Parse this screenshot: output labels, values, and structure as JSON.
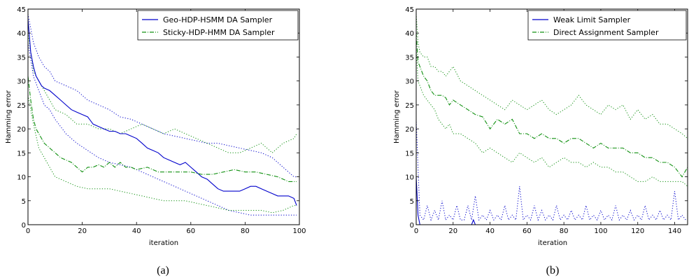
{
  "colors": {
    "blue": "#0000cc",
    "green": "#109010"
  },
  "chart_data": [
    {
      "type": "line",
      "caption": "(a)",
      "xlabel": "iteration",
      "ylabel": "Hamming error",
      "xlim": [
        0,
        100
      ],
      "ylim": [
        0,
        45
      ],
      "xticks": [
        0,
        20,
        40,
        60,
        80,
        100
      ],
      "yticks": [
        0,
        5,
        10,
        15,
        20,
        25,
        30,
        35,
        40,
        45
      ],
      "legend_position": "top-right",
      "grid": false,
      "series": [
        {
          "name": "Geo-HDP-HSMM DA Sampler",
          "color": "#0000cc",
          "style": "solid",
          "legend": true,
          "x": [
            0,
            1,
            2,
            3,
            4,
            5,
            6,
            8,
            10,
            12,
            14,
            16,
            18,
            20,
            22,
            24,
            26,
            28,
            30,
            32,
            34,
            36,
            38,
            40,
            42,
            44,
            46,
            48,
            50,
            52,
            54,
            56,
            58,
            60,
            62,
            64,
            66,
            68,
            70,
            72,
            74,
            76,
            78,
            80,
            82,
            84,
            86,
            88,
            90,
            92,
            94,
            96,
            98,
            99
          ],
          "y": [
            43,
            36,
            33,
            31,
            30,
            29,
            28.5,
            28,
            27,
            26,
            25,
            24,
            23.5,
            23,
            22.5,
            21,
            20.5,
            20,
            19.5,
            19.5,
            19,
            19,
            18.5,
            18,
            17,
            16,
            15.5,
            15,
            14,
            13.5,
            13,
            12.5,
            13,
            12,
            11,
            10,
            9.5,
            8.5,
            7.5,
            7,
            7,
            7,
            7,
            7.5,
            8,
            8,
            7.5,
            7,
            6.5,
            6,
            6,
            6,
            5.5,
            4
          ]
        },
        {
          "name": "Geo-HDP-HSMM upper",
          "color": "#0000cc",
          "style": "dotted",
          "legend": false,
          "x": [
            0,
            2,
            4,
            6,
            8,
            10,
            14,
            18,
            22,
            26,
            30,
            34,
            38,
            42,
            46,
            50,
            54,
            58,
            62,
            66,
            70,
            74,
            78,
            82,
            86,
            90,
            94,
            98,
            99
          ],
          "y": [
            44,
            38,
            35,
            33,
            32,
            30,
            29,
            28,
            26,
            25,
            24,
            22.5,
            22,
            21,
            20,
            19,
            18.5,
            18,
            17.5,
            17,
            17,
            16.5,
            16,
            15.5,
            15,
            14,
            12,
            10,
            10
          ]
        },
        {
          "name": "Geo-HDP-HSMM lower",
          "color": "#0000cc",
          "style": "dotted",
          "legend": false,
          "x": [
            0,
            2,
            4,
            6,
            8,
            10,
            14,
            18,
            22,
            26,
            30,
            34,
            38,
            42,
            46,
            50,
            54,
            58,
            62,
            66,
            70,
            74,
            78,
            82,
            86,
            90,
            94,
            98,
            99
          ],
          "y": [
            38,
            31,
            28,
            25,
            24,
            22,
            19,
            17,
            15.5,
            14,
            13,
            12.5,
            12,
            11,
            10,
            9,
            8,
            7,
            6,
            5,
            4,
            3,
            2.5,
            2,
            2,
            2,
            2,
            2,
            2
          ]
        },
        {
          "name": "Sticky-HDP-HMM DA Sampler",
          "color": "#109010",
          "style": "dashdot",
          "legend": true,
          "x": [
            0,
            1,
            2,
            3,
            4,
            6,
            8,
            10,
            12,
            14,
            16,
            18,
            20,
            22,
            24,
            26,
            28,
            30,
            32,
            34,
            36,
            38,
            40,
            44,
            48,
            52,
            56,
            60,
            64,
            68,
            72,
            76,
            80,
            84,
            88,
            92,
            96,
            99
          ],
          "y": [
            31,
            26,
            22,
            20,
            19,
            17,
            16,
            15,
            14,
            13.5,
            13,
            12,
            11,
            12,
            12,
            12.5,
            12,
            13,
            12,
            13,
            12,
            12,
            11.5,
            12,
            11,
            11,
            11,
            11,
            10.5,
            10.5,
            11,
            11.5,
            11,
            11,
            10.5,
            10,
            9,
            9
          ]
        },
        {
          "name": "Sticky-HDP-HMM upper",
          "color": "#109010",
          "style": "dotted",
          "legend": false,
          "x": [
            0,
            2,
            4,
            6,
            8,
            10,
            14,
            18,
            22,
            26,
            30,
            34,
            38,
            42,
            46,
            50,
            54,
            58,
            62,
            66,
            70,
            74,
            78,
            82,
            86,
            90,
            94,
            98,
            99
          ],
          "y": [
            40,
            32,
            30,
            28,
            26,
            24,
            23,
            21,
            21,
            20,
            20,
            19,
            20,
            21,
            20,
            19,
            20,
            19,
            18,
            17,
            16,
            15,
            15,
            16,
            17,
            15,
            17,
            18,
            19
          ]
        },
        {
          "name": "Sticky-HDP-HMM lower",
          "color": "#109010",
          "style": "dotted",
          "legend": false,
          "x": [
            0,
            2,
            4,
            6,
            8,
            10,
            14,
            18,
            22,
            26,
            30,
            34,
            38,
            42,
            46,
            50,
            54,
            58,
            62,
            66,
            70,
            74,
            78,
            82,
            86,
            90,
            94,
            98,
            99
          ],
          "y": [
            27,
            21,
            16,
            14,
            12,
            10,
            9,
            8,
            7.5,
            7.5,
            7.5,
            7,
            6.5,
            6,
            5.5,
            5,
            5,
            5,
            4.5,
            4,
            3.5,
            3,
            3,
            3,
            3,
            2.5,
            3,
            4,
            4
          ]
        }
      ]
    },
    {
      "type": "line",
      "caption": "(b)",
      "xlabel": "iteration",
      "ylabel": "Hamming error",
      "xlim": [
        0,
        147
      ],
      "ylim": [
        0,
        45
      ],
      "xticks": [
        0,
        20,
        40,
        60,
        80,
        100,
        120,
        140
      ],
      "yticks": [
        0,
        5,
        10,
        15,
        20,
        25,
        30,
        35,
        40,
        45
      ],
      "legend_position": "top-right",
      "grid": false,
      "series": [
        {
          "name": "Weak Limit Sampler",
          "color": "#0000cc",
          "style": "solid",
          "legend": true,
          "x": [
            0,
            1,
            2,
            3,
            10,
            20,
            30,
            31,
            32,
            40,
            60,
            80,
            100,
            120,
            140,
            147
          ],
          "y": [
            10,
            2,
            0,
            0,
            0,
            0,
            0,
            1,
            0,
            0,
            0,
            0,
            0,
            0,
            0,
            0
          ]
        },
        {
          "name": "Weak Limit upper",
          "color": "#0000cc",
          "style": "dotted",
          "legend": false,
          "x": [
            0,
            1,
            2,
            4,
            6,
            8,
            10,
            12,
            14,
            16,
            18,
            20,
            22,
            24,
            26,
            28,
            30,
            32,
            34,
            36,
            38,
            40,
            42,
            44,
            46,
            48,
            50,
            52,
            54,
            56,
            58,
            60,
            62,
            64,
            66,
            68,
            70,
            72,
            74,
            76,
            78,
            80,
            82,
            84,
            86,
            88,
            90,
            92,
            94,
            96,
            98,
            100,
            102,
            104,
            106,
            108,
            110,
            112,
            114,
            116,
            118,
            120,
            122,
            124,
            126,
            128,
            130,
            132,
            134,
            136,
            138,
            140,
            142,
            144,
            146,
            147
          ],
          "y": [
            22,
            12,
            2,
            1,
            4,
            1,
            3,
            1,
            5,
            1,
            2,
            1,
            4,
            1,
            1,
            4,
            1,
            6,
            1,
            2,
            1,
            3,
            1,
            2,
            1,
            4,
            1,
            2,
            1,
            8,
            1,
            2,
            1,
            4,
            1,
            3,
            1,
            2,
            1,
            4,
            1,
            2,
            1,
            3,
            1,
            2,
            1,
            4,
            1,
            2,
            1,
            3,
            1,
            2,
            1,
            4,
            1,
            2,
            1,
            3,
            1,
            2,
            1,
            4,
            1,
            2,
            1,
            3,
            1,
            2,
            1,
            7,
            1,
            2,
            1,
            1
          ]
        },
        {
          "name": "Direct Assignment Sampler",
          "color": "#109010",
          "style": "dashdot",
          "legend": true,
          "x": [
            0,
            1,
            2,
            4,
            6,
            8,
            10,
            12,
            14,
            16,
            18,
            20,
            24,
            28,
            32,
            36,
            40,
            44,
            48,
            52,
            56,
            60,
            64,
            68,
            72,
            76,
            80,
            84,
            88,
            92,
            96,
            100,
            104,
            108,
            112,
            116,
            120,
            124,
            128,
            132,
            136,
            140,
            144,
            147
          ],
          "y": [
            40,
            34,
            33,
            31,
            30,
            28,
            27,
            27,
            27,
            26.5,
            25,
            26,
            25,
            24,
            23,
            22.5,
            20,
            22,
            21,
            22,
            19,
            19,
            18,
            19,
            18,
            18,
            17,
            18,
            18,
            17,
            16,
            17,
            16,
            16,
            16,
            15,
            15,
            14,
            14,
            13,
            13,
            12,
            10,
            12
          ]
        },
        {
          "name": "Direct Assignment upper",
          "color": "#109010",
          "style": "dotted",
          "legend": false,
          "x": [
            0,
            1,
            2,
            4,
            6,
            8,
            10,
            12,
            14,
            16,
            18,
            20,
            24,
            28,
            32,
            36,
            40,
            44,
            48,
            52,
            56,
            60,
            64,
            68,
            72,
            76,
            80,
            84,
            88,
            92,
            96,
            100,
            104,
            108,
            112,
            116,
            120,
            124,
            128,
            132,
            136,
            140,
            144,
            147
          ],
          "y": [
            44,
            38,
            36,
            35,
            35,
            33,
            33,
            32,
            32,
            31,
            32,
            33,
            30,
            29,
            28,
            27,
            26,
            25,
            24,
            26,
            25,
            24,
            25,
            26,
            24,
            23,
            24,
            25,
            27,
            25,
            24,
            23,
            25,
            24,
            25,
            22,
            24,
            22,
            23,
            21,
            21,
            20,
            19,
            18
          ]
        },
        {
          "name": "Direct Assignment lower",
          "color": "#109010",
          "style": "dotted",
          "legend": false,
          "x": [
            0,
            1,
            2,
            4,
            6,
            8,
            10,
            12,
            14,
            16,
            18,
            20,
            24,
            28,
            32,
            36,
            40,
            44,
            48,
            52,
            56,
            60,
            64,
            68,
            72,
            76,
            80,
            84,
            88,
            92,
            96,
            100,
            104,
            108,
            112,
            116,
            120,
            124,
            128,
            132,
            136,
            140,
            144,
            147
          ],
          "y": [
            37,
            30,
            29,
            27,
            26,
            25,
            24,
            22,
            21,
            20,
            21,
            19,
            19,
            18,
            17,
            15,
            16,
            15,
            14,
            13,
            15,
            14,
            13,
            14,
            12,
            13,
            14,
            13,
            13,
            12,
            13,
            12,
            12,
            11,
            11,
            10,
            9,
            9,
            10,
            9,
            9,
            9,
            9,
            8
          ]
        }
      ]
    }
  ]
}
